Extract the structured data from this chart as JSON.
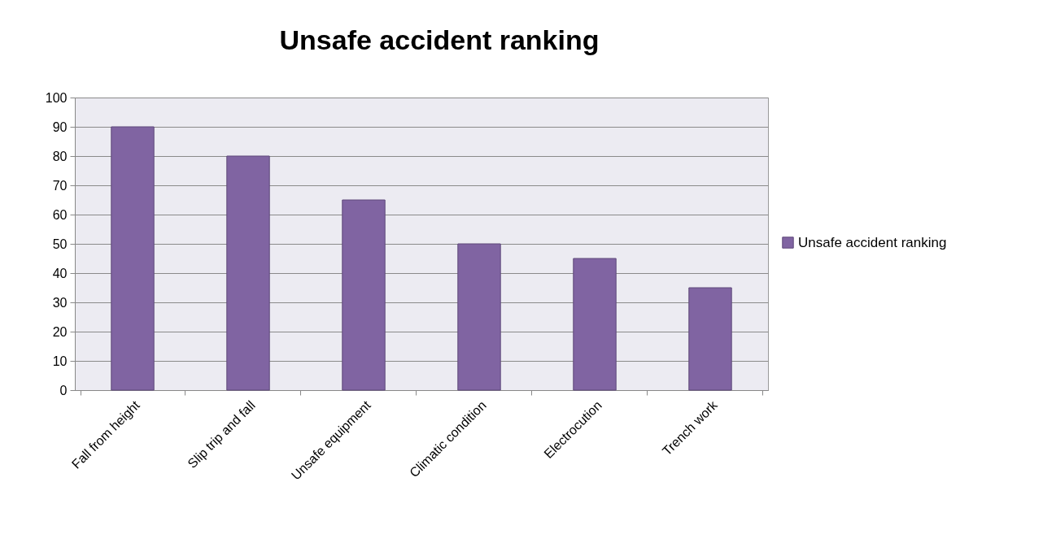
{
  "chart_data": {
    "type": "bar",
    "title": "Unsafe accident ranking",
    "categories": [
      "Fall from height",
      "Slip trip and fall",
      "Unsafe equipment",
      "Climatic condition",
      "Electrocution",
      "Trench work"
    ],
    "series": [
      {
        "name": "Unsafe accident ranking",
        "color": "#8064a2",
        "values": [
          90,
          80,
          65,
          50,
          45,
          35
        ]
      }
    ],
    "ylim": [
      0,
      100
    ],
    "yticks": [
      0,
      10,
      20,
      30,
      40,
      50,
      60,
      70,
      80,
      90,
      100
    ],
    "grid": "y",
    "legend": "right"
  }
}
